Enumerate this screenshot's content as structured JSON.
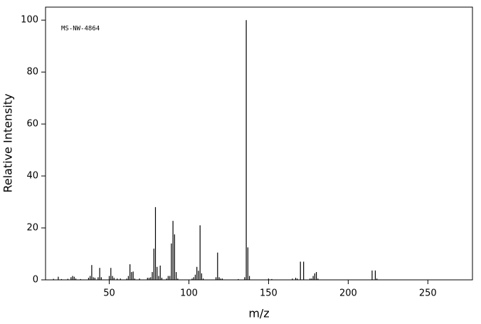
{
  "chart_data": {
    "type": "stem",
    "title": "MS-NW-4864",
    "x_label": "m/z",
    "y_label": "Relative Intensity",
    "color": "#000000",
    "x": [
      15,
      18,
      20,
      24,
      26,
      27,
      28,
      29,
      32,
      37,
      38,
      39,
      40,
      41,
      43,
      44,
      45,
      50,
      51,
      52,
      53,
      55,
      57,
      61,
      62,
      63,
      64,
      65,
      66,
      69,
      74,
      75,
      76,
      77,
      78,
      79,
      80,
      81,
      82,
      83,
      86,
      87,
      88,
      89,
      90,
      91,
      92,
      93,
      102,
      103,
      104,
      105,
      106,
      107,
      108,
      109,
      117,
      118,
      119,
      120,
      121,
      131,
      135,
      136,
      137,
      138,
      150,
      152,
      165,
      167,
      168,
      170,
      172,
      176,
      177,
      178,
      179,
      180,
      181,
      215,
      217,
      218
    ],
    "values": [
      0.4,
      1.2,
      0.3,
      0.4,
      1.0,
      1.5,
      1.2,
      0.5,
      0.3,
      0.8,
      1.5,
      5.7,
      1.0,
      0.8,
      1.0,
      4.6,
      1.0,
      1.5,
      4.6,
      1.5,
      0.8,
      0.5,
      0.5,
      0.5,
      1.5,
      6.0,
      3.0,
      3.2,
      0.5,
      0.5,
      0.8,
      0.8,
      1.0,
      3.0,
      12.0,
      28.0,
      5.0,
      1.5,
      5.5,
      0.8,
      0.5,
      1.5,
      1.5,
      14.0,
      22.7,
      17.5,
      3.0,
      0.5,
      0.5,
      1.0,
      2.0,
      5.0,
      3.5,
      21.0,
      2.5,
      0.5,
      1.0,
      10.5,
      1.0,
      0.5,
      0.5,
      0.3,
      1.0,
      100,
      12.5,
      1.5,
      0.5,
      0.3,
      0.5,
      0.8,
      0.5,
      7.0,
      7.0,
      0.5,
      0.5,
      1.5,
      2.5,
      3.0,
      0.5,
      3.6,
      3.6,
      0.5
    ],
    "xlim": [
      10,
      278
    ],
    "ylim": [
      0,
      105
    ],
    "xticks": [
      50,
      100,
      150,
      200,
      250
    ],
    "yticks": [
      0,
      20,
      40,
      60,
      80,
      100
    ]
  }
}
